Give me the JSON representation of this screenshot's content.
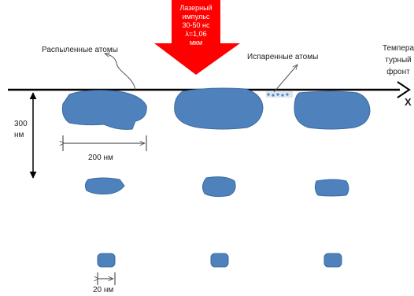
{
  "laser": {
    "lines": [
      "Лазерный",
      "импульс",
      "30-50 нс",
      "λ=1,06",
      "мкм"
    ],
    "color": "#ff0000"
  },
  "labels": {
    "sputtered": "Распыленные атомы",
    "evaporated": "Испаренные атомы",
    "depth": [
      "300",
      "нм"
    ],
    "width_large": "200 нм",
    "width_small": "20 нм",
    "thermal_front": [
      "Темпера",
      "турный",
      "фронт"
    ],
    "axis_x": "X"
  },
  "colors": {
    "particle": "#4f81bd",
    "particle_stroke": "#3a6aa0",
    "line": "#000000"
  }
}
